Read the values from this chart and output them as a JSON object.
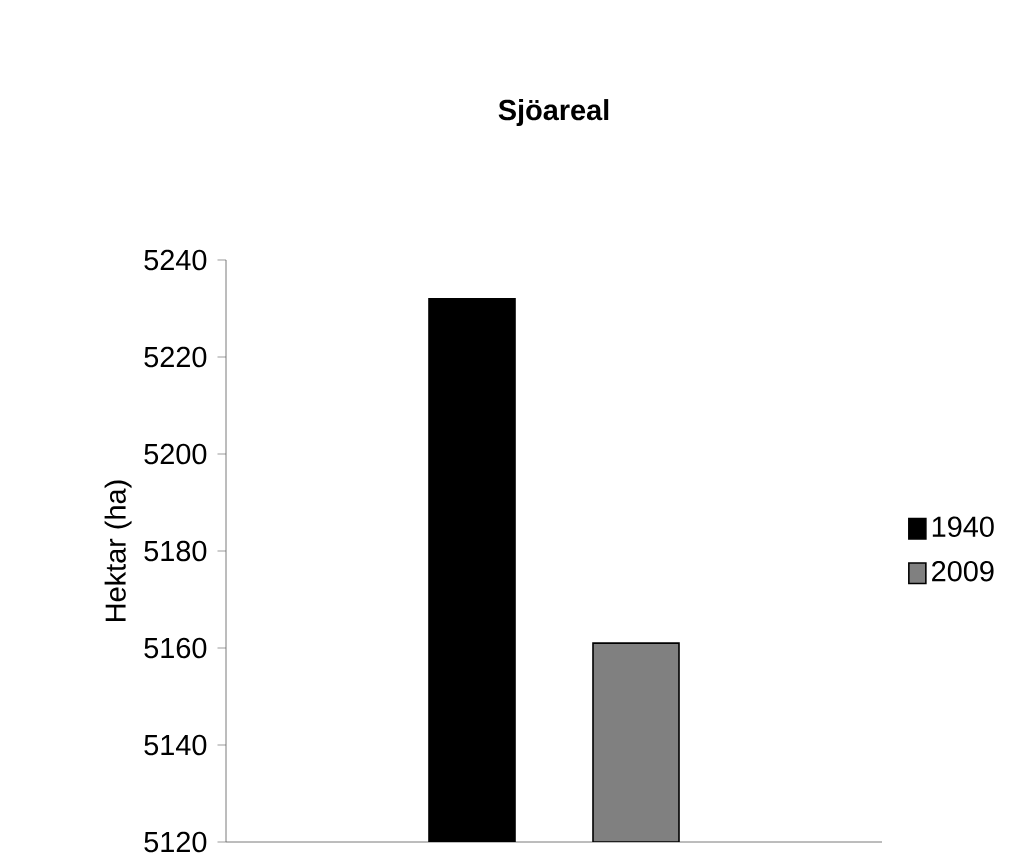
{
  "chart_data": {
    "type": "bar",
    "title": "Sjöareal",
    "ylabel": "Hektar (ha)",
    "categories": [
      null
    ],
    "series": [
      {
        "name": "1940",
        "color": "#000000",
        "values": [
          5232
        ]
      },
      {
        "name": "2009",
        "color": "#808080",
        "values": [
          5161
        ]
      }
    ],
    "ylim": [
      5120,
      5240
    ],
    "yticks": [
      5120,
      5140,
      5160,
      5180,
      5200,
      5220,
      5240
    ],
    "grid": false,
    "legend": "right"
  }
}
